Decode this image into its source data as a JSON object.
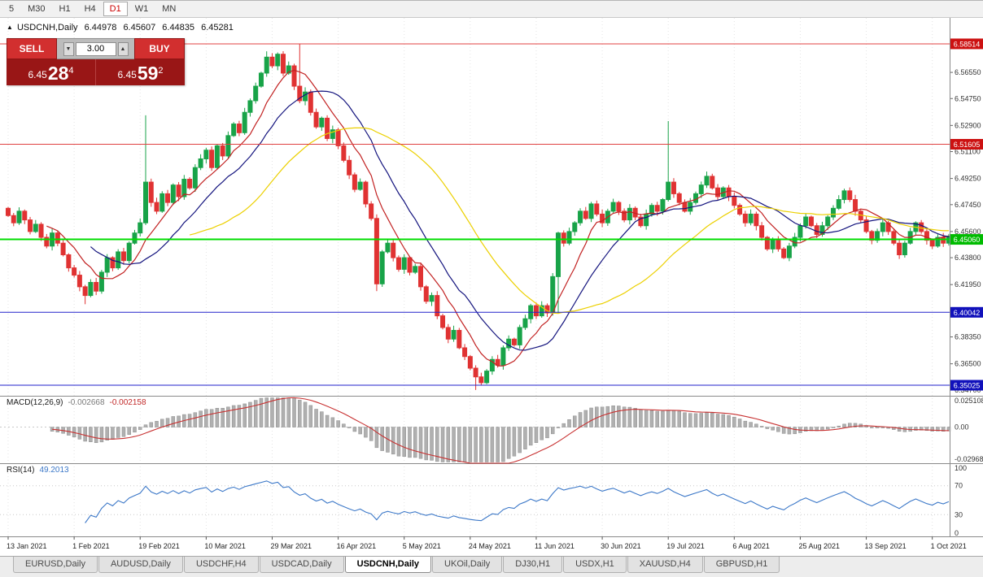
{
  "toolbar": {
    "timeframes": [
      "5",
      "M30",
      "H1",
      "H4",
      "D1",
      "W1",
      "MN"
    ],
    "active_index": 4
  },
  "chart_header": {
    "collapse_icon": "▲",
    "symbol": "USDCNH,Daily",
    "open": "6.44978",
    "high": "6.45607",
    "low": "6.44835",
    "close": "6.45281"
  },
  "order_panel": {
    "sell_label": "SELL",
    "buy_label": "BUY",
    "volume": "3.00",
    "step_down_icon": "▼",
    "step_up_icon": "▲",
    "sell_price": {
      "prefix": "6.45",
      "big": "28",
      "sup": "4"
    },
    "buy_price": {
      "prefix": "6.45",
      "big": "59",
      "sup": "2"
    }
  },
  "price_axis": {
    "ticks": [
      "6.56550",
      "6.54750",
      "6.52900",
      "6.51100",
      "6.49250",
      "6.47450",
      "6.45600",
      "6.43800",
      "6.41950",
      "6.40150",
      "6.38350",
      "6.36500",
      "6.34700"
    ]
  },
  "x_axis": {
    "dates": [
      "13 Jan 2021",
      "1 Feb 2021",
      "19 Feb 2021",
      "10 Mar 2021",
      "29 Mar 2021",
      "16 Apr 2021",
      "5 May 2021",
      "24 May 2021",
      "11 Jun 2021",
      "30 Jun 2021",
      "19 Jul 2021",
      "6 Aug 2021",
      "25 Aug 2021",
      "13 Sep 2021",
      "1 Oct 2021"
    ]
  },
  "indicators": {
    "macd": {
      "label": "MACD(12,26,9)",
      "value1": "-0.002668",
      "value2": "-0.002158",
      "axis": [
        "0.025108",
        "0.00",
        "-0.02968"
      ],
      "ylim": [
        -0.0297,
        0.0251
      ]
    },
    "rsi": {
      "label": "RSI(14)",
      "value": "49.2013",
      "axis": [
        "100",
        "70",
        "30",
        "0"
      ],
      "levels": [
        70,
        30
      ],
      "ylim": [
        0,
        100
      ]
    }
  },
  "hlines": [
    {
      "value": 6.58514,
      "label": "6.58514",
      "color": "#e04040",
      "label_bg": "#cc1111",
      "width": 1
    },
    {
      "value": 6.51605,
      "label": "6.51605",
      "color": "#e04040",
      "label_bg": "#cc1111",
      "width": 1
    },
    {
      "value": 6.4506,
      "label": "6.45060",
      "color": "#00dd00",
      "label_bg": "#00bb00",
      "width": 2
    },
    {
      "value": 6.40042,
      "label": "6.40042",
      "color": "#2222cc",
      "label_bg": "#1111bb",
      "width": 1
    },
    {
      "value": 6.35025,
      "label": "6.35025",
      "color": "#2222cc",
      "label_bg": "#1111bb",
      "width": 1
    }
  ],
  "chart_data": {
    "type": "candlestick",
    "title": "USDCNH, Daily",
    "ylim": [
      6.343,
      6.603
    ],
    "date_tick_step": 12,
    "first_open": 6.472,
    "wick": 0.003,
    "closes": [
      6.467,
      6.462,
      6.47,
      6.464,
      6.456,
      6.461,
      6.452,
      6.446,
      6.455,
      6.448,
      6.44,
      6.431,
      6.426,
      6.418,
      6.412,
      6.421,
      6.415,
      6.428,
      6.438,
      6.431,
      6.442,
      6.436,
      6.448,
      6.455,
      6.462,
      6.49,
      6.476,
      6.47,
      6.482,
      6.476,
      6.488,
      6.48,
      6.492,
      6.486,
      6.5,
      6.506,
      6.512,
      6.5,
      6.515,
      6.508,
      6.522,
      6.53,
      6.524,
      6.538,
      6.546,
      6.556,
      6.565,
      6.576,
      6.57,
      6.578,
      6.565,
      6.57,
      6.556,
      6.546,
      6.552,
      6.538,
      6.528,
      6.534,
      6.52,
      6.526,
      6.515,
      6.505,
      6.495,
      6.485,
      6.49,
      6.475,
      6.465,
      6.42,
      6.442,
      6.448,
      6.438,
      6.43,
      6.438,
      6.428,
      6.432,
      6.418,
      6.408,
      6.412,
      6.398,
      6.39,
      6.382,
      6.388,
      6.376,
      6.37,
      6.362,
      6.356,
      6.352,
      6.36,
      6.368,
      6.364,
      6.376,
      6.382,
      6.378,
      6.39,
      6.396,
      6.405,
      6.398,
      6.405,
      6.4,
      6.425,
      6.455,
      6.448,
      6.456,
      6.462,
      6.47,
      6.465,
      6.475,
      6.468,
      6.462,
      6.47,
      6.476,
      6.47,
      6.464,
      6.472,
      6.466,
      6.46,
      6.468,
      6.474,
      6.47,
      6.478,
      6.49,
      6.482,
      6.476,
      6.47,
      6.476,
      6.482,
      6.488,
      6.494,
      6.486,
      6.48,
      6.486,
      6.48,
      6.474,
      6.468,
      6.462,
      6.468,
      6.46,
      6.452,
      6.444,
      6.45,
      6.444,
      6.438,
      6.446,
      6.452,
      6.46,
      6.466,
      6.46,
      6.454,
      6.46,
      6.466,
      6.472,
      6.478,
      6.484,
      6.478,
      6.47,
      6.464,
      6.456,
      6.45,
      6.456,
      6.462,
      6.456,
      6.448,
      6.44,
      6.448,
      6.456,
      6.462,
      6.456,
      6.45,
      6.446,
      6.452,
      6.448,
      6.4528
    ],
    "overrides": {
      "14": {
        "low": 6.406
      },
      "25": {
        "high": 6.536
      },
      "47": {
        "high": 6.58
      },
      "53": {
        "high": 6.585
      },
      "67": {
        "low": 6.415
      },
      "85": {
        "low": 6.347
      },
      "86": {
        "low": 6.35
      },
      "100": {
        "low": 6.4
      },
      "120": {
        "high": 6.532
      }
    },
    "ma_lines": [
      {
        "period": 8,
        "color": "#c22222"
      },
      {
        "period": 16,
        "color": "#14147e"
      },
      {
        "period": 34,
        "color": "#ecd000"
      }
    ],
    "colors": {
      "up": "#18a348",
      "down": "#e03232",
      "grid": "#e4e4e4",
      "axis_text": "#333333",
      "separator": "#8a8a8a",
      "macd_bar": "#b0b0b0",
      "macd_signal": "#c83232",
      "rsi_line": "#3c78c8"
    }
  },
  "tabs": {
    "items": [
      "EURUSD,Daily",
      "AUDUSD,Daily",
      "USDCHF,H4",
      "USDCAD,Daily",
      "USDCNH,Daily",
      "UKOil,Daily",
      "DJ30,H1",
      "USDX,H1",
      "XAUUSD,H4",
      "GBPUSD,H1"
    ],
    "active_index": 4
  }
}
